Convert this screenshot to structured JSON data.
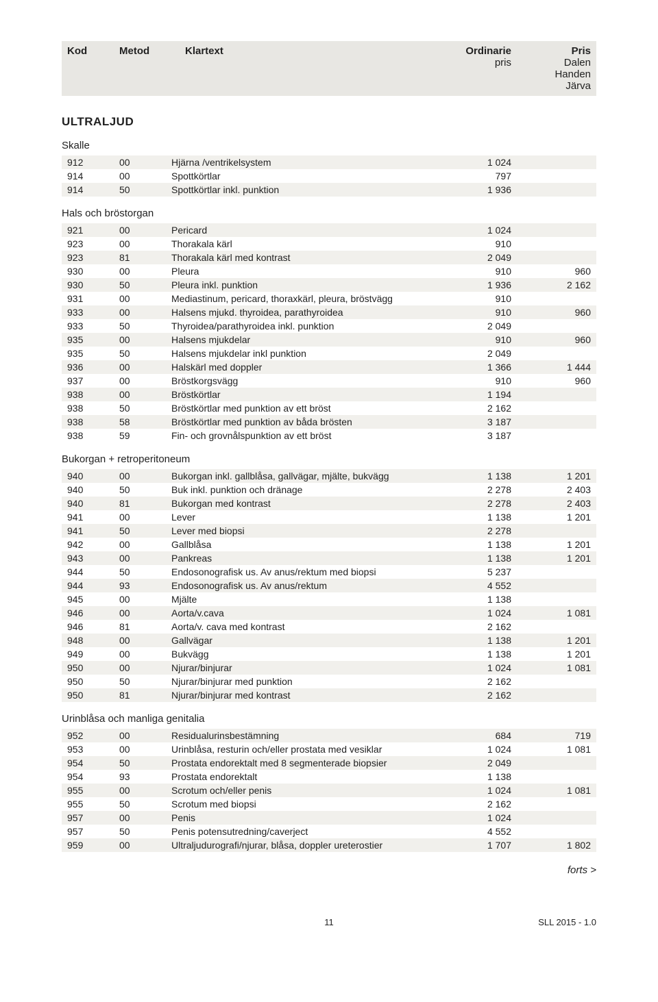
{
  "header": {
    "kod": "Kod",
    "metod": "Metod",
    "klartext": "Klartext",
    "ordinarie": "Ordinarie",
    "ordinarie2": "pris",
    "pris": "Pris",
    "pris2": "Dalen",
    "pris3": "Handen",
    "pris4": "Järva"
  },
  "sectionTitle": "ULTRALJUD",
  "groups": [
    {
      "title": "Skalle",
      "rows": [
        {
          "kod": "912",
          "met": "00",
          "klr": "Hjärna /ventrikelsystem",
          "ord": "1 024",
          "prs": ""
        },
        {
          "kod": "914",
          "met": "00",
          "klr": "Spottkörtlar",
          "ord": "797",
          "prs": ""
        },
        {
          "kod": "914",
          "met": "50",
          "klr": "Spottkörtlar inkl. punktion",
          "ord": "1 936",
          "prs": ""
        }
      ]
    },
    {
      "title": "Hals och bröstorgan",
      "rows": [
        {
          "kod": "921",
          "met": "00",
          "klr": "Pericard",
          "ord": "1 024",
          "prs": ""
        },
        {
          "kod": "923",
          "met": "00",
          "klr": "Thorakala kärl",
          "ord": "910",
          "prs": ""
        },
        {
          "kod": "923",
          "met": "81",
          "klr": "Thorakala kärl med kontrast",
          "ord": "2 049",
          "prs": ""
        },
        {
          "kod": "930",
          "met": "00",
          "klr": "Pleura",
          "ord": "910",
          "prs": "960"
        },
        {
          "kod": "930",
          "met": "50",
          "klr": "Pleura inkl. punktion",
          "ord": "1 936",
          "prs": "2 162"
        },
        {
          "kod": "931",
          "met": "00",
          "klr": "Mediastinum, pericard, thoraxkärl, pleura, bröstvägg",
          "ord": "910",
          "prs": ""
        },
        {
          "kod": "933",
          "met": "00",
          "klr": "Halsens mjukd. thyroidea, parathyroidea",
          "ord": "910",
          "prs": "960"
        },
        {
          "kod": "933",
          "met": "50",
          "klr": "Thyroidea/parathyroidea inkl. punktion",
          "ord": "2 049",
          "prs": ""
        },
        {
          "kod": "935",
          "met": "00",
          "klr": "Halsens mjukdelar",
          "ord": "910",
          "prs": "960"
        },
        {
          "kod": "935",
          "met": "50",
          "klr": "Halsens mjukdelar inkl punktion",
          "ord": "2 049",
          "prs": ""
        },
        {
          "kod": "936",
          "met": "00",
          "klr": "Halskärl med doppler",
          "ord": "1 366",
          "prs": "1 444"
        },
        {
          "kod": "937",
          "met": "00",
          "klr": "Bröstkorgsvägg",
          "ord": "910",
          "prs": "960"
        },
        {
          "kod": "938",
          "met": "00",
          "klr": "Bröstkörtlar",
          "ord": "1 194",
          "prs": ""
        },
        {
          "kod": "938",
          "met": "50",
          "klr": "Bröstkörtlar med punktion av ett bröst",
          "ord": "2 162",
          "prs": ""
        },
        {
          "kod": "938",
          "met": "58",
          "klr": "Bröstkörtlar med punktion av båda brösten",
          "ord": "3 187",
          "prs": ""
        },
        {
          "kod": "938",
          "met": "59",
          "klr": "Fin- och grovnålspunktion av ett bröst",
          "ord": "3 187",
          "prs": ""
        }
      ]
    },
    {
      "title": "Bukorgan + retroperitoneum",
      "rows": [
        {
          "kod": "940",
          "met": "00",
          "klr": "Bukorgan inkl. gallblåsa, gallvägar, mjälte, bukvägg",
          "ord": "1 138",
          "prs": "1 201"
        },
        {
          "kod": "940",
          "met": "50",
          "klr": "Buk inkl. punktion och dränage",
          "ord": "2 278",
          "prs": "2 403"
        },
        {
          "kod": "940",
          "met": "81",
          "klr": "Bukorgan med kontrast",
          "ord": "2 278",
          "prs": "2 403"
        },
        {
          "kod": "941",
          "met": "00",
          "klr": "Lever",
          "ord": "1 138",
          "prs": "1 201"
        },
        {
          "kod": "941",
          "met": "50",
          "klr": "Lever med biopsi",
          "ord": "2 278",
          "prs": ""
        },
        {
          "kod": "942",
          "met": "00",
          "klr": "Gallblåsa",
          "ord": "1 138",
          "prs": "1 201"
        },
        {
          "kod": "943",
          "met": "00",
          "klr": "Pankreas",
          "ord": "1 138",
          "prs": "1 201"
        },
        {
          "kod": "944",
          "met": "50",
          "klr": "Endosonografisk us. Av anus/rektum med biopsi",
          "ord": "5 237",
          "prs": ""
        },
        {
          "kod": "944",
          "met": "93",
          "klr": "Endosonografisk us. Av anus/rektum",
          "ord": "4 552",
          "prs": ""
        },
        {
          "kod": "945",
          "met": "00",
          "klr": "Mjälte",
          "ord": "1 138",
          "prs": ""
        },
        {
          "kod": "946",
          "met": "00",
          "klr": "Aorta/v.cava",
          "ord": "1 024",
          "prs": "1 081"
        },
        {
          "kod": "946",
          "met": "81",
          "klr": "Aorta/v. cava med kontrast",
          "ord": "2 162",
          "prs": ""
        },
        {
          "kod": "948",
          "met": "00",
          "klr": "Gallvägar",
          "ord": "1 138",
          "prs": "1 201"
        },
        {
          "kod": "949",
          "met": "00",
          "klr": "Bukvägg",
          "ord": "1 138",
          "prs": "1 201"
        },
        {
          "kod": "950",
          "met": "00",
          "klr": "Njurar/binjurar",
          "ord": "1 024",
          "prs": "1 081"
        },
        {
          "kod": "950",
          "met": "50",
          "klr": "Njurar/binjurar med punktion",
          "ord": "2 162",
          "prs": ""
        },
        {
          "kod": "950",
          "met": "81",
          "klr": "Njurar/binjurar med kontrast",
          "ord": "2 162",
          "prs": ""
        }
      ]
    },
    {
      "title": "Urinblåsa och manliga genitalia",
      "rows": [
        {
          "kod": "952",
          "met": "00",
          "klr": "Residualurinsbestämning",
          "ord": "684",
          "prs": "719"
        },
        {
          "kod": "953",
          "met": "00",
          "klr": "Urinblåsa, resturin och/eller prostata med vesiklar",
          "ord": "1 024",
          "prs": "1 081"
        },
        {
          "kod": "954",
          "met": "50",
          "klr": "Prostata endorektalt med 8 segmenterade biopsier",
          "ord": "2 049",
          "prs": ""
        },
        {
          "kod": "954",
          "met": "93",
          "klr": "Prostata endorektalt",
          "ord": "1 138",
          "prs": ""
        },
        {
          "kod": "955",
          "met": "00",
          "klr": "Scrotum och/eller penis",
          "ord": "1 024",
          "prs": "1 081"
        },
        {
          "kod": "955",
          "met": "50",
          "klr": "Scrotum med biopsi",
          "ord": "2 162",
          "prs": ""
        },
        {
          "kod": "957",
          "met": "00",
          "klr": "Penis",
          "ord": "1 024",
          "prs": ""
        },
        {
          "kod": "957",
          "met": "50",
          "klr": "Penis potensutredning/caverject",
          "ord": "4 552",
          "prs": ""
        },
        {
          "kod": "959",
          "met": "00",
          "klr": "Ultraljudurografi/njurar, blåsa, doppler ureterostier",
          "ord": "1 707",
          "prs": "1 802"
        }
      ]
    }
  ],
  "forts": "forts >",
  "pageNumber": "11",
  "version": "SLL 2015 - 1.0"
}
